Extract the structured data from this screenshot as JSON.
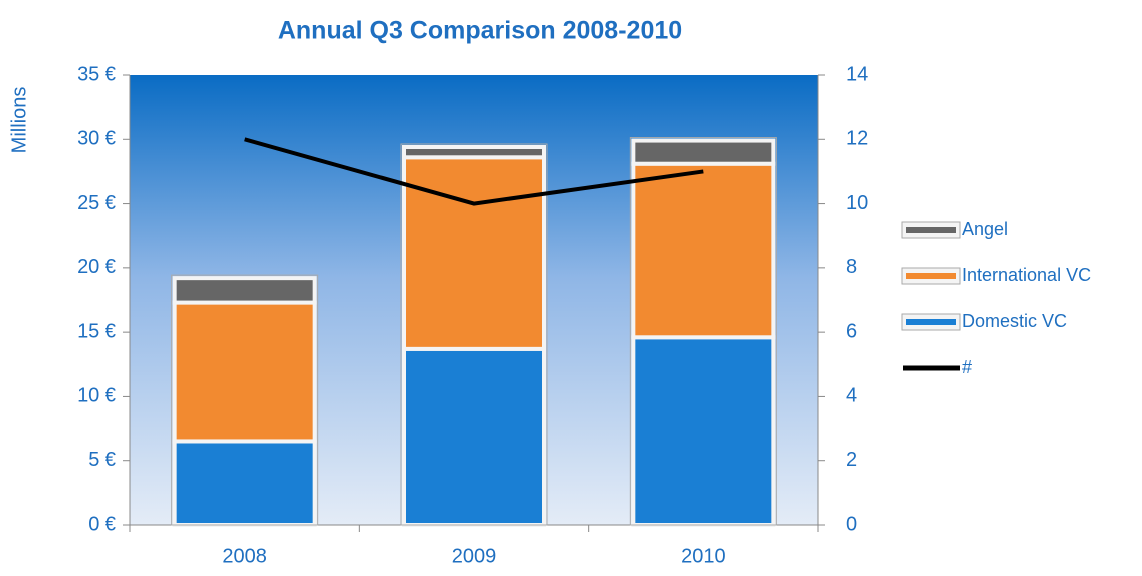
{
  "chart_data": {
    "type": "bar",
    "stacked": true,
    "title": "Annual Q3 Comparison 2008-2010",
    "y_label": "Millions",
    "categories": [
      "2008",
      "2009",
      "2010"
    ],
    "series": [
      {
        "name": "Domestic VC",
        "color": "#1a7fd4",
        "values": [
          6.5,
          13.7,
          14.6
        ]
      },
      {
        "name": "International VC",
        "color": "#f28a30",
        "values": [
          10.8,
          14.9,
          13.5
        ]
      },
      {
        "name": "Angel",
        "color": "#666666",
        "values": [
          1.9,
          0.8,
          1.8
        ]
      },
      {
        "name": "#",
        "color": "#000000",
        "type": "line",
        "axis": "y2",
        "values": [
          12,
          10,
          11
        ]
      }
    ],
    "ylim": [
      0,
      35
    ],
    "yticks": [
      {
        "value": 0,
        "label": "0 €"
      },
      {
        "value": 5,
        "label": "5 €"
      },
      {
        "value": 10,
        "label": "10 €"
      },
      {
        "value": 15,
        "label": "15 €"
      },
      {
        "value": 20,
        "label": "20 €"
      },
      {
        "value": 25,
        "label": "25 €"
      },
      {
        "value": 30,
        "label": "30 €"
      },
      {
        "value": 35,
        "label": "35 €"
      }
    ],
    "y2lim": [
      0,
      14
    ],
    "y2ticks": [
      0,
      2,
      4,
      6,
      8,
      10,
      12,
      14
    ],
    "legend": "right"
  }
}
